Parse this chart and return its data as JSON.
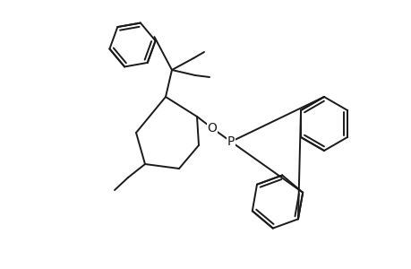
{
  "background_color": "#ffffff",
  "line_color": "#1a1a1a",
  "line_width": 1.4,
  "figsize": [
    4.6,
    3.0
  ],
  "dpi": 100
}
